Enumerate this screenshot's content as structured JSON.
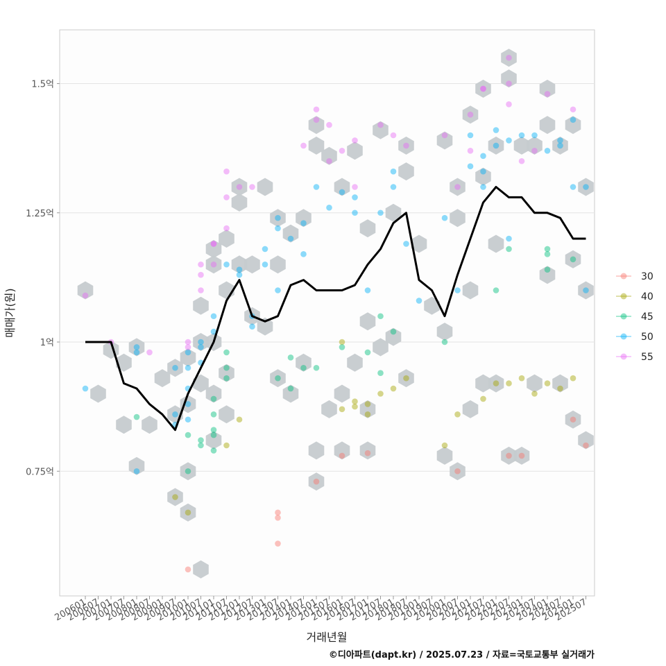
{
  "chart_data": {
    "type": "scatter",
    "xlabel": "거래년월",
    "ylabel": "매매가(원)",
    "caption": "©디아파트(dapt.kr) / 2025.07.23 / 자료=국토교통부 실거래가",
    "x_ticks": [
      "200601",
      "200607",
      "200701",
      "200707",
      "200801",
      "200807",
      "200901",
      "200907",
      "201001",
      "201007",
      "201101",
      "201107",
      "201201",
      "201207",
      "201301",
      "201307",
      "201401",
      "201407",
      "201501",
      "201507",
      "201601",
      "201607",
      "201701",
      "201707",
      "201801",
      "201807",
      "201901",
      "201907",
      "202001",
      "202007",
      "202101",
      "202107",
      "202201",
      "202207",
      "202301",
      "202307",
      "202401",
      "202407",
      "202501",
      "202507"
    ],
    "y_ticks": [
      {
        "value": 0.75,
        "label": "0.75억"
      },
      {
        "value": 1.0,
        "label": "1억"
      },
      {
        "value": 1.25,
        "label": "1.25억"
      },
      {
        "value": 1.5,
        "label": "1.5억"
      }
    ],
    "ylim": [
      0.5,
      1.6
    ],
    "grid": true,
    "legend_position": "right",
    "legend": [
      {
        "name": "30",
        "color": "#f8766d"
      },
      {
        "name": "40",
        "color": "#a3a500"
      },
      {
        "name": "45",
        "color": "#00bf7d"
      },
      {
        "name": "50",
        "color": "#00b0f6"
      },
      {
        "name": "55",
        "color": "#e76bf3"
      }
    ],
    "hex_color": "#c6cbcf",
    "line_color": "#000000",
    "series": [
      {
        "name": "30",
        "points": [
          [
            "201001",
            0.56
          ],
          [
            "201307",
            0.66
          ],
          [
            "201307",
            0.61
          ],
          [
            "201307",
            0.67
          ],
          [
            "201501",
            0.73
          ],
          [
            "201601",
            0.78
          ],
          [
            "201701",
            0.785
          ],
          [
            "202007",
            0.75
          ],
          [
            "202207",
            0.78
          ],
          [
            "202301",
            0.78
          ],
          [
            "202501",
            0.85
          ],
          [
            "202507",
            0.8
          ]
        ]
      },
      {
        "name": "40",
        "points": [
          [
            "200907",
            0.7
          ],
          [
            "201001",
            0.67
          ],
          [
            "201107",
            0.8
          ],
          [
            "201201",
            0.85
          ],
          [
            "201601",
            1.0
          ],
          [
            "201601",
            0.87
          ],
          [
            "201607",
            0.885
          ],
          [
            "201607",
            0.875
          ],
          [
            "201701",
            0.86
          ],
          [
            "201701",
            0.88
          ],
          [
            "201707",
            0.9
          ],
          [
            "201801",
            0.91
          ],
          [
            "201807",
            0.93
          ],
          [
            "202001",
            0.8
          ],
          [
            "202007",
            0.86
          ],
          [
            "202107",
            0.89
          ],
          [
            "202201",
            0.92
          ],
          [
            "202207",
            0.92
          ],
          [
            "202301",
            0.93
          ],
          [
            "202307",
            0.9
          ],
          [
            "202401",
            0.92
          ],
          [
            "202407",
            0.91
          ],
          [
            "202501",
            0.93
          ]
        ]
      },
      {
        "name": "45",
        "points": [
          [
            "200801",
            0.855
          ],
          [
            "201001",
            0.82
          ],
          [
            "201001",
            0.75
          ],
          [
            "201007",
            0.8
          ],
          [
            "201007",
            0.81
          ],
          [
            "201101",
            0.82
          ],
          [
            "201101",
            0.83
          ],
          [
            "201101",
            0.79
          ],
          [
            "201101",
            0.86
          ],
          [
            "201101",
            0.89
          ],
          [
            "201107",
            0.93
          ],
          [
            "201107",
            0.95
          ],
          [
            "201107",
            0.98
          ],
          [
            "201307",
            0.93
          ],
          [
            "201401",
            0.91
          ],
          [
            "201401",
            0.97
          ],
          [
            "201407",
            0.95
          ],
          [
            "201501",
            0.95
          ],
          [
            "201601",
            0.99
          ],
          [
            "201701",
            0.98
          ],
          [
            "201707",
            0.94
          ],
          [
            "201707",
            1.05
          ],
          [
            "201801",
            1.02
          ],
          [
            "202001",
            1.0
          ],
          [
            "202201",
            1.1
          ],
          [
            "202207",
            1.18
          ],
          [
            "202401",
            1.14
          ],
          [
            "202401",
            1.17
          ],
          [
            "202401",
            1.18
          ],
          [
            "202501",
            1.16
          ]
        ]
      },
      {
        "name": "50",
        "points": [
          [
            "200601",
            0.91
          ],
          [
            "200801",
            0.98
          ],
          [
            "200801",
            0.99
          ],
          [
            "200801",
            0.75
          ],
          [
            "200907",
            0.95
          ],
          [
            "200907",
            0.86
          ],
          [
            "200907",
            0.84
          ],
          [
            "201001",
            0.88
          ],
          [
            "201001",
            0.91
          ],
          [
            "201001",
            0.95
          ],
          [
            "201001",
            0.98
          ],
          [
            "201001",
            0.85
          ],
          [
            "201007",
            0.96
          ],
          [
            "201007",
            0.99
          ],
          [
            "201007",
            1.0
          ],
          [
            "201101",
            1.02
          ],
          [
            "201101",
            1.05
          ],
          [
            "201107",
            1.15
          ],
          [
            "201201",
            1.13
          ],
          [
            "201201",
            1.14
          ],
          [
            "201207",
            1.05
          ],
          [
            "201207",
            1.03
          ],
          [
            "201301",
            1.15
          ],
          [
            "201301",
            1.18
          ],
          [
            "201307",
            1.1
          ],
          [
            "201307",
            1.22
          ],
          [
            "201307",
            1.24
          ],
          [
            "201401",
            1.2
          ],
          [
            "201407",
            1.23
          ],
          [
            "201407",
            1.17
          ],
          [
            "201501",
            1.3
          ],
          [
            "201507",
            1.26
          ],
          [
            "201601",
            1.29
          ],
          [
            "201607",
            1.25
          ],
          [
            "201607",
            1.28
          ],
          [
            "201701",
            1.1
          ],
          [
            "201707",
            1.25
          ],
          [
            "201801",
            1.33
          ],
          [
            "201801",
            1.3
          ],
          [
            "201807",
            1.19
          ],
          [
            "201901",
            1.08
          ],
          [
            "202001",
            1.24
          ],
          [
            "202007",
            1.1
          ],
          [
            "202101",
            1.34
          ],
          [
            "202101",
            1.4
          ],
          [
            "202107",
            1.36
          ],
          [
            "202107",
            1.33
          ],
          [
            "202107",
            1.3
          ],
          [
            "202201",
            1.41
          ],
          [
            "202201",
            1.38
          ],
          [
            "202207",
            1.39
          ],
          [
            "202207",
            1.2
          ],
          [
            "202301",
            1.4
          ],
          [
            "202307",
            1.4
          ],
          [
            "202401",
            1.37
          ],
          [
            "202407",
            1.39
          ],
          [
            "202407",
            1.38
          ],
          [
            "202501",
            1.43
          ],
          [
            "202501",
            1.3
          ],
          [
            "202507",
            1.1
          ],
          [
            "202507",
            1.3
          ]
        ]
      },
      {
        "name": "55",
        "points": [
          [
            "200601",
            1.09
          ],
          [
            "200701",
            1.0
          ],
          [
            "200807",
            0.98
          ],
          [
            "201001",
            1.0
          ],
          [
            "201001",
            0.99
          ],
          [
            "201007",
            1.1
          ],
          [
            "201007",
            1.15
          ],
          [
            "201007",
            1.13
          ],
          [
            "201101",
            1.15
          ],
          [
            "201101",
            1.19
          ],
          [
            "201101",
            1.19
          ],
          [
            "201107",
            1.22
          ],
          [
            "201107",
            1.28
          ],
          [
            "201107",
            1.33
          ],
          [
            "201201",
            1.3
          ],
          [
            "201207",
            1.3
          ],
          [
            "201407",
            1.38
          ],
          [
            "201501",
            1.45
          ],
          [
            "201501",
            1.43
          ],
          [
            "201507",
            1.42
          ],
          [
            "201507",
            1.35
          ],
          [
            "201601",
            1.37
          ],
          [
            "201607",
            1.39
          ],
          [
            "201607",
            1.3
          ],
          [
            "201707",
            1.42
          ],
          [
            "201801",
            1.4
          ],
          [
            "201807",
            1.38
          ],
          [
            "202001",
            1.4
          ],
          [
            "202007",
            1.3
          ],
          [
            "202101",
            1.44
          ],
          [
            "202101",
            1.37
          ],
          [
            "202107",
            1.49
          ],
          [
            "202107",
            1.49
          ],
          [
            "202207",
            1.55
          ],
          [
            "202207",
            1.5
          ],
          [
            "202207",
            1.46
          ],
          [
            "202301",
            1.35
          ],
          [
            "202307",
            1.37
          ],
          [
            "202401",
            1.48
          ],
          [
            "202501",
            1.45
          ]
        ]
      }
    ],
    "trend_line": [
      [
        "200601",
        1.0
      ],
      [
        "200607",
        1.0
      ],
      [
        "200701",
        1.0
      ],
      [
        "200707",
        0.92
      ],
      [
        "200801",
        0.91
      ],
      [
        "200807",
        0.88
      ],
      [
        "200901",
        0.86
      ],
      [
        "200907",
        0.83
      ],
      [
        "201001",
        0.9
      ],
      [
        "201007",
        0.95
      ],
      [
        "201101",
        1.0
      ],
      [
        "201107",
        1.08
      ],
      [
        "201201",
        1.12
      ],
      [
        "201207",
        1.05
      ],
      [
        "201301",
        1.04
      ],
      [
        "201307",
        1.05
      ],
      [
        "201401",
        1.11
      ],
      [
        "201407",
        1.12
      ],
      [
        "201501",
        1.1
      ],
      [
        "201507",
        1.1
      ],
      [
        "201601",
        1.1
      ],
      [
        "201607",
        1.11
      ],
      [
        "201701",
        1.15
      ],
      [
        "201707",
        1.18
      ],
      [
        "201801",
        1.23
      ],
      [
        "201807",
        1.25
      ],
      [
        "201901",
        1.12
      ],
      [
        "201907",
        1.1
      ],
      [
        "202001",
        1.05
      ],
      [
        "202007",
        1.13
      ],
      [
        "202101",
        1.2
      ],
      [
        "202107",
        1.27
      ],
      [
        "202201",
        1.3
      ],
      [
        "202207",
        1.28
      ],
      [
        "202301",
        1.28
      ],
      [
        "202307",
        1.25
      ],
      [
        "202401",
        1.25
      ],
      [
        "202407",
        1.24
      ],
      [
        "202501",
        1.2
      ],
      [
        "202507",
        1.2
      ]
    ],
    "hexbins": [
      [
        "200601",
        1.1
      ],
      [
        "200607",
        0.9
      ],
      [
        "200701",
        0.985
      ],
      [
        "200707",
        0.96
      ],
      [
        "200707",
        0.84
      ],
      [
        "200801",
        0.76
      ],
      [
        "200801",
        0.99
      ],
      [
        "200807",
        0.84
      ],
      [
        "200901",
        0.93
      ],
      [
        "200907",
        0.7
      ],
      [
        "200907",
        0.95
      ],
      [
        "200907",
        0.86
      ],
      [
        "201001",
        0.67
      ],
      [
        "201001",
        0.88
      ],
      [
        "201001",
        0.75
      ],
      [
        "201001",
        0.97
      ],
      [
        "201007",
        0.56
      ],
      [
        "201007",
        0.92
      ],
      [
        "201007",
        1.0
      ],
      [
        "201007",
        1.07
      ],
      [
        "201101",
        0.81
      ],
      [
        "201101",
        0.9
      ],
      [
        "201101",
        1.0
      ],
      [
        "201101",
        1.15
      ],
      [
        "201101",
        1.18
      ],
      [
        "201107",
        0.86
      ],
      [
        "201107",
        0.94
      ],
      [
        "201107",
        1.1
      ],
      [
        "201107",
        1.2
      ],
      [
        "201201",
        1.15
      ],
      [
        "201201",
        1.27
      ],
      [
        "201201",
        1.3
      ],
      [
        "201207",
        1.05
      ],
      [
        "201207",
        1.15
      ],
      [
        "201301",
        1.03
      ],
      [
        "201301",
        1.3
      ],
      [
        "201307",
        0.93
      ],
      [
        "201307",
        1.15
      ],
      [
        "201307",
        1.24
      ],
      [
        "201401",
        0.9
      ],
      [
        "201401",
        1.21
      ],
      [
        "201407",
        0.96
      ],
      [
        "201407",
        1.24
      ],
      [
        "201501",
        0.73
      ],
      [
        "201501",
        0.79
      ],
      [
        "201501",
        1.38
      ],
      [
        "201501",
        1.42
      ],
      [
        "201507",
        0.87
      ],
      [
        "201507",
        1.36
      ],
      [
        "201601",
        0.79
      ],
      [
        "201601",
        0.9
      ],
      [
        "201601",
        1.3
      ],
      [
        "201607",
        0.96
      ],
      [
        "201607",
        1.37
      ],
      [
        "201701",
        0.79
      ],
      [
        "201701",
        0.87
      ],
      [
        "201701",
        1.04
      ],
      [
        "201701",
        1.22
      ],
      [
        "201707",
        0.99
      ],
      [
        "201707",
        1.41
      ],
      [
        "201801",
        1.01
      ],
      [
        "201801",
        1.25
      ],
      [
        "201807",
        0.93
      ],
      [
        "201807",
        1.33
      ],
      [
        "201807",
        1.38
      ],
      [
        "201901",
        1.19
      ],
      [
        "201907",
        1.07
      ],
      [
        "202001",
        0.78
      ],
      [
        "202001",
        1.02
      ],
      [
        "202001",
        1.39
      ],
      [
        "202007",
        0.75
      ],
      [
        "202007",
        1.3
      ],
      [
        "202007",
        1.24
      ],
      [
        "202101",
        0.87
      ],
      [
        "202101",
        1.1
      ],
      [
        "202101",
        1.44
      ],
      [
        "202107",
        0.92
      ],
      [
        "202107",
        1.32
      ],
      [
        "202107",
        1.49
      ],
      [
        "202201",
        0.92
      ],
      [
        "202201",
        1.19
      ],
      [
        "202201",
        1.38
      ],
      [
        "202207",
        0.78
      ],
      [
        "202207",
        1.51
      ],
      [
        "202207",
        1.55
      ],
      [
        "202301",
        0.78
      ],
      [
        "202301",
        1.38
      ],
      [
        "202307",
        0.92
      ],
      [
        "202307",
        1.38
      ],
      [
        "202401",
        1.13
      ],
      [
        "202401",
        1.49
      ],
      [
        "202401",
        1.42
      ],
      [
        "202407",
        0.92
      ],
      [
        "202407",
        1.38
      ],
      [
        "202501",
        0.85
      ],
      [
        "202501",
        1.16
      ],
      [
        "202501",
        1.42
      ],
      [
        "202507",
        0.81
      ],
      [
        "202507",
        1.1
      ],
      [
        "202507",
        1.3
      ]
    ]
  }
}
